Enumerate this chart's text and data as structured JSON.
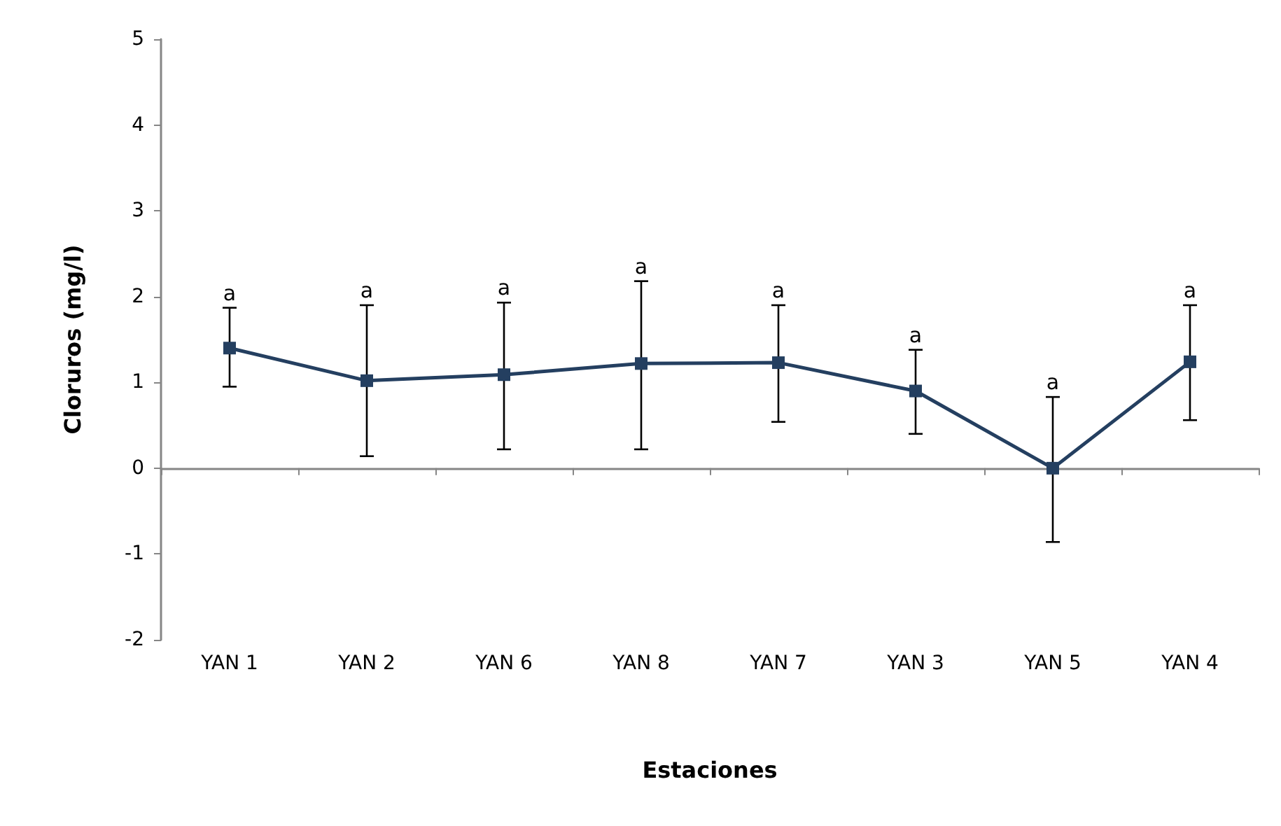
{
  "chart_data": {
    "type": "line",
    "xlabel": "Estaciones",
    "ylabel": "Cloruros (mg/l)",
    "categories": [
      "YAN 1",
      "YAN 2",
      "YAN 6",
      "YAN 8",
      "YAN 7",
      "YAN 3",
      "YAN 5",
      "YAN 4"
    ],
    "series": [
      {
        "color": "#243f60",
        "values": [
          1.4,
          1.02,
          1.09,
          1.22,
          1.23,
          0.9,
          0.0,
          1.24
        ],
        "errors": [
          [
            0.95,
            1.87
          ],
          [
            0.14,
            1.9
          ],
          [
            0.22,
            1.93
          ],
          [
            0.22,
            2.18
          ],
          [
            0.54,
            1.9
          ],
          [
            0.4,
            1.38
          ],
          [
            -0.86,
            0.83
          ],
          [
            0.56,
            1.9
          ]
        ]
      }
    ],
    "ylim": [
      -2,
      5
    ],
    "yticks": [
      -2,
      -1,
      0,
      1,
      2,
      3,
      4,
      5
    ],
    "marker": "square",
    "line_style": "solid",
    "annotations": [
      {
        "text": "a",
        "x": "YAN 1",
        "y": 1.87
      },
      {
        "text": "a",
        "x": "YAN 2",
        "y": 1.9
      },
      {
        "text": "a",
        "x": "YAN 6",
        "y": 1.93
      },
      {
        "text": "a",
        "x": "YAN 8",
        "y": 2.18
      },
      {
        "text": "a",
        "x": "YAN 7",
        "y": 1.9
      },
      {
        "text": "a",
        "x": "YAN 3",
        "y": 1.38
      },
      {
        "text": "a",
        "x": "YAN 5",
        "y": 0.83
      },
      {
        "text": "a",
        "x": "YAN 4",
        "y": 1.9
      }
    ]
  }
}
